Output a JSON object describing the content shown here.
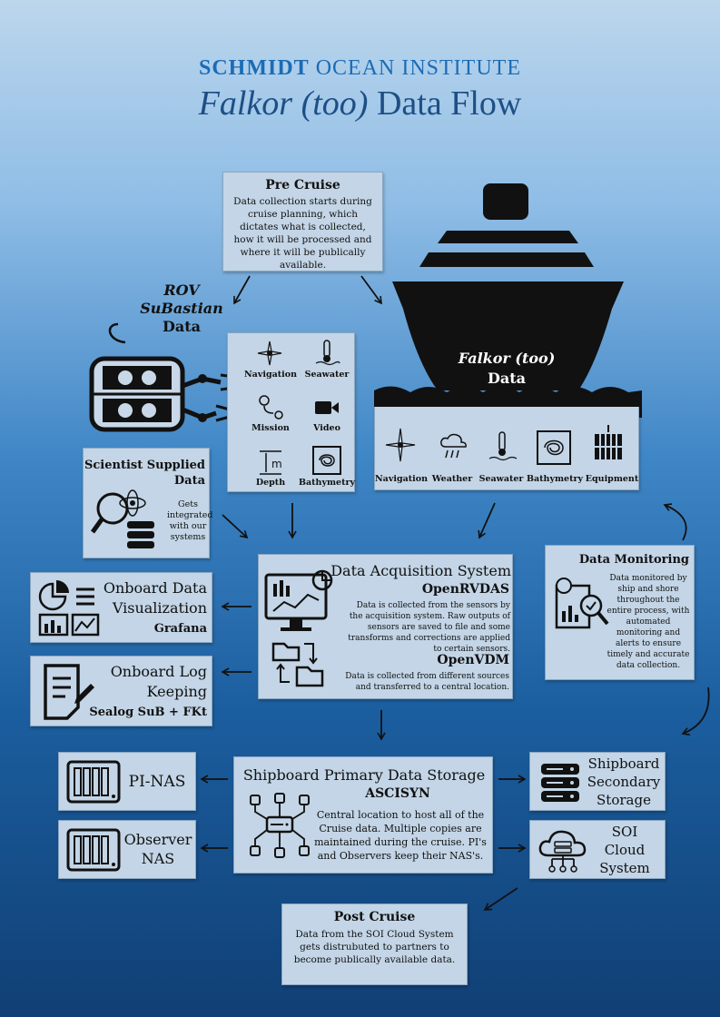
{
  "header": {
    "org_bold": "SCHMIDT",
    "org_rest": "OCEAN INSTITUTE",
    "title_italic": "Falkor (too)",
    "title_rest": "Data Flow"
  },
  "pre_cruise": {
    "title": "Pre Cruise",
    "text": "Data collection starts during cruise planning, which dictates what is collected, how it will be processed and where it will be publically available."
  },
  "rov": {
    "line1": "ROV",
    "line2": "SuBastian",
    "line3": "Data",
    "items": [
      "Navigation",
      "Seawater",
      "Mission",
      "Video",
      "Depth",
      "Bathymetry"
    ]
  },
  "ship": {
    "name": "Falkor (too)",
    "data": "Data",
    "items": [
      "Navigation",
      "Weather",
      "Seawater",
      "Bathymetry",
      "Equipment"
    ]
  },
  "scientist": {
    "title1": "Scientist Supplied",
    "title2": "Data",
    "text": "Gets integrated with our systems"
  },
  "das": {
    "title": "Data Acquisition System",
    "openrvdas": "OpenRVDAS",
    "openrvdas_text": "Data is collected from the sensors by the acquisition system. Raw outputs of sensors are saved to file and some transforms and corrections are applied to certain sensors.",
    "openvdm": "OpenVDM",
    "openvdm_text": "Data is collected from different sources and transferred to a central location."
  },
  "monitoring": {
    "title": "Data Monitoring",
    "text": "Data monitored by ship and shore throughout the entire process, with automated monitoring and alerts to ensure timely and accurate data collection."
  },
  "viz": {
    "line1": "Onboard Data",
    "line2": "Visualization",
    "sub": "Grafana"
  },
  "log": {
    "line1": "Onboard Log",
    "line2": "Keeping",
    "sub": "Sealog SuB + FKt"
  },
  "storage": {
    "title": "Shipboard Primary Data Storage",
    "sub": "ASCISYN",
    "text": "Central location to host all of the Cruise data. Multiple copies are maintained during the cruise. PI's and Observers keep their NAS's."
  },
  "pinas": {
    "label": "PI-NAS"
  },
  "observer": {
    "line1": "Observer",
    "line2": "NAS"
  },
  "secondary": {
    "line1": "Shipboard",
    "line2": "Secondary",
    "line3": "Storage"
  },
  "cloud": {
    "line1": "SOI",
    "line2": "Cloud",
    "line3": "System"
  },
  "post_cruise": {
    "title": "Post Cruise",
    "text": "Data from the SOI Cloud System gets distrubuted to partners to become publically available data."
  }
}
